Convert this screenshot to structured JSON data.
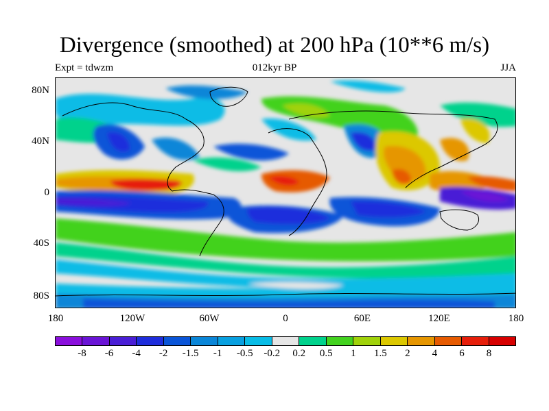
{
  "title": "Divergence (smoothed) at 200 hPa (10**6 m/s)",
  "subtitle_left": "Expt = tdwzm",
  "subtitle_center": "012kyr BP",
  "subtitle_right": "JJA",
  "lat_ticks": [
    "80N",
    "40N",
    "0",
    "40S",
    "80S"
  ],
  "lon_ticks": [
    "180",
    "120W",
    "60W",
    "0",
    "60E",
    "120E",
    "180"
  ],
  "colorbar": {
    "labels": [
      "-8",
      "-6",
      "-4",
      "-2",
      "-1.5",
      "-1",
      "-0.5",
      "-0.2",
      "0.2",
      "0.5",
      "1",
      "1.5",
      "2",
      "4",
      "6",
      "8"
    ],
    "colors": [
      "#8a0fdc",
      "#6a14d6",
      "#4a1ed6",
      "#1e2ddc",
      "#0a55d8",
      "#0a86d8",
      "#08a0e0",
      "#08bce6",
      "#e6e6e6",
      "#00d28c",
      "#42d21e",
      "#a0d20a",
      "#dcc800",
      "#e69600",
      "#e65a00",
      "#e61e0a",
      "#d70000"
    ]
  },
  "colors": {
    "land_outline": "#000000",
    "near_zero": "#e6e6e6"
  }
}
